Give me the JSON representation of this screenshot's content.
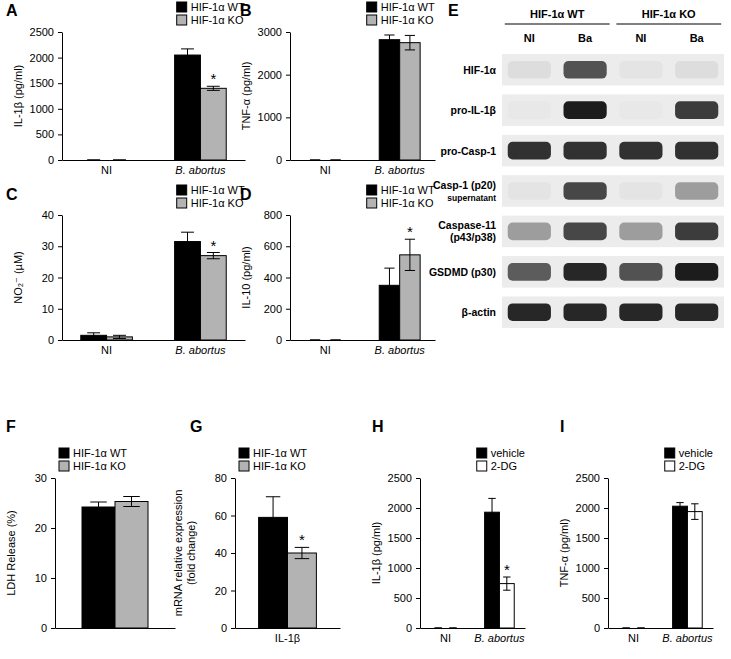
{
  "chart_data": [
    {
      "panel": "A",
      "type": "bar",
      "ylabel": "IL-1β (pg/ml)",
      "categories": [
        "NI",
        "B. abortus"
      ],
      "series": [
        {
          "name": "HIF-1α WT",
          "color": "#000000",
          "values": [
            0,
            2050
          ],
          "errors": [
            0,
            120
          ],
          "significance": [
            null,
            null
          ]
        },
        {
          "name": "HIF-1α KO",
          "color": "#b3b3b3",
          "values": [
            0,
            1400
          ],
          "errors": [
            0,
            40
          ],
          "significance": [
            null,
            "*"
          ]
        }
      ],
      "ylim": [
        0,
        2500
      ],
      "yticks": [
        0,
        500,
        1000,
        1500,
        2000,
        2500
      ],
      "legend": "top-right"
    },
    {
      "panel": "B",
      "type": "bar",
      "ylabel": "TNF-α (pg/ml)",
      "categories": [
        "NI",
        "B. abortus"
      ],
      "series": [
        {
          "name": "HIF-1α WT",
          "color": "#000000",
          "values": [
            0,
            2820
          ],
          "errors": [
            0,
            110
          ],
          "significance": [
            null,
            null
          ]
        },
        {
          "name": "HIF-1α KO",
          "color": "#b3b3b3",
          "values": [
            0,
            2750
          ],
          "errors": [
            0,
            170
          ],
          "significance": [
            null,
            null
          ]
        }
      ],
      "ylim": [
        0,
        3000
      ],
      "yticks": [
        0,
        1000,
        2000,
        3000
      ],
      "legend": "top-right"
    },
    {
      "panel": "C",
      "type": "bar",
      "ylabel": "NO₂⁻ (µM)",
      "categories": [
        "NI",
        "B. abortus"
      ],
      "series": [
        {
          "name": "HIF-1α WT",
          "color": "#000000",
          "values": [
            1.5,
            31.5
          ],
          "errors": [
            0.8,
            3
          ],
          "significance": [
            null,
            null
          ]
        },
        {
          "name": "HIF-1α KO",
          "color": "#b3b3b3",
          "values": [
            1,
            27
          ],
          "errors": [
            0.5,
            1
          ],
          "significance": [
            null,
            "*"
          ]
        }
      ],
      "ylim": [
        0,
        40
      ],
      "yticks": [
        0,
        10,
        20,
        30,
        40
      ],
      "legend": "top-right"
    },
    {
      "panel": "D",
      "type": "bar",
      "ylabel": "IL-10 (pg/ml)",
      "categories": [
        "NI",
        "B. abortus"
      ],
      "series": [
        {
          "name": "HIF-1α WT",
          "color": "#000000",
          "values": [
            0,
            350
          ],
          "errors": [
            0,
            110
          ],
          "significance": [
            null,
            null
          ]
        },
        {
          "name": "HIF-1α KO",
          "color": "#b3b3b3",
          "values": [
            0,
            545
          ],
          "errors": [
            0,
            100
          ],
          "significance": [
            null,
            "*"
          ]
        }
      ],
      "ylim": [
        0,
        800
      ],
      "yticks": [
        0,
        200,
        400,
        600,
        800
      ],
      "legend": "top-right"
    },
    {
      "panel": "F",
      "type": "bar",
      "ylabel": "LDH Release (%)",
      "categories": [
        null
      ],
      "series": [
        {
          "name": "HIF-1α WT",
          "color": "#000000",
          "values": [
            24.2
          ],
          "errors": [
            1
          ],
          "significance": [
            null
          ]
        },
        {
          "name": "HIF-1α KO",
          "color": "#b3b3b3",
          "values": [
            25.3
          ],
          "errors": [
            1
          ],
          "significance": [
            null
          ]
        }
      ],
      "ylim": [
        0,
        30
      ],
      "yticks": [
        0,
        10,
        20,
        30
      ],
      "legend": "top-left"
    },
    {
      "panel": "G",
      "type": "bar",
      "ylabel": [
        "mRNA relative expression",
        "(fold change)"
      ],
      "categories": [
        "IL-1β"
      ],
      "series": [
        {
          "name": "HIF-1α WT",
          "color": "#000000",
          "values": [
            59
          ],
          "errors": [
            11
          ],
          "significance": [
            null
          ]
        },
        {
          "name": "HIF-1α KO",
          "color": "#b3b3b3",
          "values": [
            40
          ],
          "errors": [
            3
          ],
          "significance": [
            "*"
          ]
        }
      ],
      "ylim": [
        0,
        80
      ],
      "yticks": [
        0,
        20,
        40,
        60,
        80
      ],
      "legend": "top-left"
    },
    {
      "panel": "H",
      "type": "bar",
      "ylabel": "IL-1β (pg/ml)",
      "categories": [
        "NI",
        "B. abortus"
      ],
      "series": [
        {
          "name": "vehicle",
          "color": "#000000",
          "values": [
            0,
            1930
          ],
          "errors": [
            0,
            230
          ],
          "significance": [
            null,
            null
          ]
        },
        {
          "name": "2-DG",
          "color": "#ffffff",
          "values": [
            0,
            740
          ],
          "errors": [
            0,
            110
          ],
          "significance": [
            null,
            "*"
          ]
        }
      ],
      "ylim": [
        0,
        2500
      ],
      "yticks": [
        0,
        500,
        1000,
        1500,
        2000,
        2500
      ],
      "legend": "top-right"
    },
    {
      "panel": "I",
      "type": "bar",
      "ylabel": "TNF-α (pg/ml)",
      "categories": [
        "NI",
        "B. abortus"
      ],
      "series": [
        {
          "name": "vehicle",
          "color": "#000000",
          "values": [
            0,
            2030
          ],
          "errors": [
            0,
            60
          ],
          "significance": [
            null,
            null
          ]
        },
        {
          "name": "2-DG",
          "color": "#ffffff",
          "values": [
            0,
            1940
          ],
          "errors": [
            0,
            130
          ],
          "significance": [
            null,
            null
          ]
        }
      ],
      "ylim": [
        0,
        2500
      ],
      "yticks": [
        0,
        500,
        1000,
        1500,
        2000,
        2500
      ],
      "legend": "top-right"
    }
  ],
  "blot": {
    "panel": "E",
    "groups": [
      {
        "label": "HIF-1α WT",
        "lanes": [
          "NI",
          "Ba"
        ]
      },
      {
        "label": "HIF-1α KO",
        "lanes": [
          "NI",
          "Ba"
        ]
      }
    ],
    "rows": [
      {
        "label": [
          "HIF-1α"
        ],
        "intensity": [
          0.05,
          0.7,
          0.02,
          0.05
        ]
      },
      {
        "label": [
          "pro-IL-1β"
        ],
        "intensity": [
          0,
          0.95,
          0,
          0.8
        ]
      },
      {
        "label": [
          "pro-Casp-1"
        ],
        "intensity": [
          0.85,
          0.85,
          0.85,
          0.85
        ]
      },
      {
        "label": [
          "Casp-1 (p20)"
        ],
        "note": "supernatant",
        "intensity": [
          0.02,
          0.75,
          0.02,
          0.35
        ]
      },
      {
        "label": [
          "Caspase-11",
          "(p43/p38)"
        ],
        "intensity": [
          0.35,
          0.75,
          0.35,
          0.8
        ]
      },
      {
        "label": [
          "GSDMD (p30)"
        ],
        "intensity": [
          0.65,
          0.9,
          0.7,
          0.95
        ]
      },
      {
        "label": [
          "β-actin"
        ],
        "intensity": [
          0.9,
          0.9,
          0.9,
          0.9
        ]
      }
    ]
  }
}
